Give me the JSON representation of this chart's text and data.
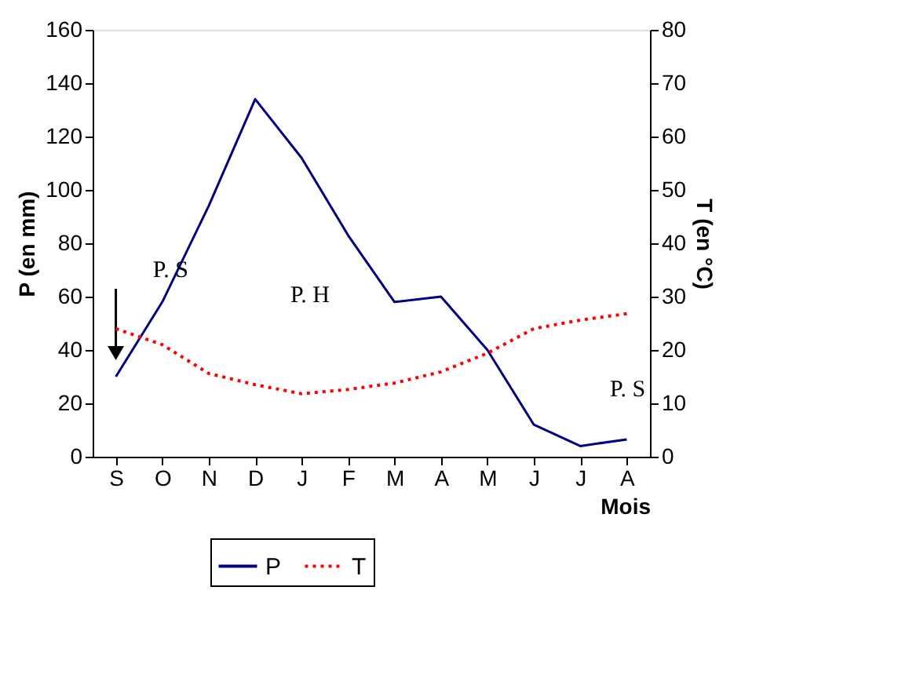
{
  "chart_data": {
    "type": "line",
    "xlabel": "Mois",
    "ylabel": "P (en mm)",
    "y2label": "T (en °C)",
    "categories": [
      "S",
      "O",
      "N",
      "D",
      "J",
      "F",
      "M",
      "A",
      "M",
      "J",
      "J",
      "A"
    ],
    "series": [
      {
        "name": "P",
        "color": "#000080",
        "line_style": "solid",
        "values": [
          30,
          58,
          94,
          134,
          112,
          83,
          58,
          60,
          40,
          12,
          4,
          6.5
        ]
      },
      {
        "name": "T",
        "color": "#ff0000",
        "line_style": "dotted",
        "axis": "y2",
        "values": [
          24,
          21,
          15.6,
          13.5,
          11.8,
          12.6,
          13.8,
          15.9,
          19.4,
          24,
          25.6,
          26.8
        ]
      }
    ],
    "ylim": [
      0,
      160
    ],
    "yticks": [
      0,
      20,
      40,
      60,
      80,
      100,
      120,
      140,
      160
    ],
    "y2lim": [
      0,
      80
    ],
    "y2ticks": [
      0,
      10,
      20,
      30,
      40,
      50,
      60,
      70,
      80
    ],
    "annotations": [
      "P. S",
      "P. H",
      "P. S"
    ],
    "grid": false,
    "legend": "bottom",
    "marker": "none"
  }
}
